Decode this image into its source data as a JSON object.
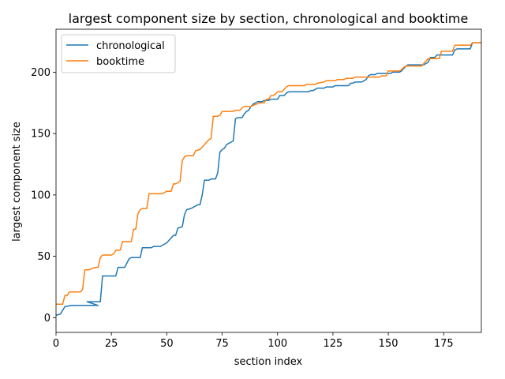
{
  "chart_data": {
    "type": "line",
    "title": "largest component size by section, chronological and booktime",
    "xlabel": "section index",
    "ylabel": "largest component size",
    "xlim": [
      0,
      192
    ],
    "ylim": [
      -12,
      235
    ],
    "xticks": [
      0,
      25,
      50,
      75,
      100,
      125,
      150,
      175
    ],
    "yticks": [
      0,
      50,
      100,
      150,
      200
    ],
    "grid": false,
    "legend_position": "upper-left",
    "series": [
      {
        "name": "chronological",
        "color": "#1f77b4",
        "points": [
          [
            0,
            2
          ],
          [
            2,
            3
          ],
          [
            4,
            9
          ],
          [
            7,
            10
          ],
          [
            19,
            10
          ],
          [
            14,
            13
          ],
          [
            20,
            13
          ],
          [
            21,
            34
          ],
          [
            27,
            34
          ],
          [
            28,
            41
          ],
          [
            31,
            41
          ],
          [
            33,
            48
          ],
          [
            34,
            49
          ],
          [
            38,
            49
          ],
          [
            39,
            57
          ],
          [
            43,
            57
          ],
          [
            44,
            58
          ],
          [
            47,
            58
          ],
          [
            48,
            59
          ],
          [
            50,
            61
          ],
          [
            51,
            63
          ],
          [
            53,
            67
          ],
          [
            54,
            67
          ],
          [
            55,
            73
          ],
          [
            57,
            74
          ],
          [
            58,
            84
          ],
          [
            59,
            88
          ],
          [
            61,
            89
          ],
          [
            62,
            90
          ],
          [
            63,
            91
          ],
          [
            64,
            92
          ],
          [
            65,
            92
          ],
          [
            66,
            100
          ],
          [
            67,
            112
          ],
          [
            69,
            112
          ],
          [
            70,
            113
          ],
          [
            72,
            113
          ],
          [
            73,
            118
          ],
          [
            74,
            135
          ],
          [
            75,
            137
          ],
          [
            76,
            138
          ],
          [
            77,
            141
          ],
          [
            78,
            142
          ],
          [
            79,
            143
          ],
          [
            80,
            144
          ],
          [
            81,
            162
          ],
          [
            82,
            163
          ],
          [
            84,
            163
          ],
          [
            85,
            166
          ],
          [
            86,
            168
          ],
          [
            87,
            169
          ],
          [
            88,
            172
          ],
          [
            89,
            174
          ],
          [
            90,
            175
          ],
          [
            91,
            176
          ],
          [
            93,
            176
          ],
          [
            94,
            177
          ],
          [
            96,
            177
          ],
          [
            97,
            178
          ],
          [
            100,
            178
          ],
          [
            101,
            181
          ],
          [
            103,
            181
          ],
          [
            104,
            183
          ],
          [
            105,
            184
          ],
          [
            114,
            184
          ],
          [
            115,
            185
          ],
          [
            116,
            185
          ],
          [
            117,
            186
          ],
          [
            118,
            187
          ],
          [
            121,
            187
          ],
          [
            122,
            188
          ],
          [
            125,
            188
          ],
          [
            126,
            189
          ],
          [
            132,
            189
          ],
          [
            133,
            191
          ],
          [
            134,
            191
          ],
          [
            135,
            192
          ],
          [
            138,
            192
          ],
          [
            139,
            193
          ],
          [
            140,
            194
          ],
          [
            141,
            197
          ],
          [
            142,
            198
          ],
          [
            144,
            198
          ],
          [
            145,
            199
          ],
          [
            151,
            199
          ],
          [
            152,
            200
          ],
          [
            155,
            200
          ],
          [
            156,
            201
          ],
          [
            157,
            203
          ],
          [
            158,
            205
          ],
          [
            159,
            206
          ],
          [
            166,
            206
          ],
          [
            167,
            207
          ],
          [
            168,
            208
          ],
          [
            169,
            212
          ],
          [
            171,
            212
          ],
          [
            172,
            214
          ],
          [
            179,
            214
          ],
          [
            180,
            218
          ],
          [
            181,
            219
          ],
          [
            187,
            219
          ],
          [
            188,
            224
          ],
          [
            192,
            224
          ]
        ]
      },
      {
        "name": "booktime",
        "color": "#ff7f0e",
        "points": [
          [
            0,
            11
          ],
          [
            3,
            11
          ],
          [
            4,
            18
          ],
          [
            5,
            18
          ],
          [
            6,
            21
          ],
          [
            11,
            21
          ],
          [
            12,
            23
          ],
          [
            13,
            39
          ],
          [
            15,
            39
          ],
          [
            16,
            40
          ],
          [
            18,
            41
          ],
          [
            19,
            41
          ],
          [
            20,
            49
          ],
          [
            21,
            51
          ],
          [
            25,
            51
          ],
          [
            26,
            52
          ],
          [
            27,
            55
          ],
          [
            29,
            55
          ],
          [
            30,
            62
          ],
          [
            34,
            62
          ],
          [
            35,
            72
          ],
          [
            36,
            72
          ],
          [
            37,
            85
          ],
          [
            38,
            88
          ],
          [
            39,
            89
          ],
          [
            41,
            89
          ],
          [
            42,
            101
          ],
          [
            48,
            101
          ],
          [
            49,
            102
          ],
          [
            50,
            103
          ],
          [
            52,
            103
          ],
          [
            53,
            109
          ],
          [
            54,
            109
          ],
          [
            56,
            111
          ],
          [
            57,
            128
          ],
          [
            58,
            131
          ],
          [
            59,
            132
          ],
          [
            62,
            132
          ],
          [
            63,
            136
          ],
          [
            65,
            137
          ],
          [
            66,
            139
          ],
          [
            67,
            141
          ],
          [
            68,
            143
          ],
          [
            69,
            145
          ],
          [
            70,
            146
          ],
          [
            71,
            164
          ],
          [
            73,
            164
          ],
          [
            74,
            165
          ],
          [
            75,
            168
          ],
          [
            80,
            168
          ],
          [
            81,
            169
          ],
          [
            83,
            169
          ],
          [
            84,
            171
          ],
          [
            85,
            172
          ],
          [
            88,
            172
          ],
          [
            89,
            173
          ],
          [
            92,
            175
          ],
          [
            94,
            175
          ],
          [
            95,
            178
          ],
          [
            96,
            178
          ],
          [
            97,
            181
          ],
          [
            98,
            181
          ],
          [
            99,
            182
          ],
          [
            100,
            184
          ],
          [
            102,
            184
          ],
          [
            103,
            186
          ],
          [
            104,
            188
          ],
          [
            105,
            189
          ],
          [
            112,
            189
          ],
          [
            113,
            190
          ],
          [
            117,
            190
          ],
          [
            118,
            191
          ],
          [
            121,
            192
          ],
          [
            122,
            193
          ],
          [
            126,
            193
          ],
          [
            127,
            194
          ],
          [
            130,
            194
          ],
          [
            131,
            195
          ],
          [
            134,
            195
          ],
          [
            135,
            196
          ],
          [
            146,
            196
          ],
          [
            147,
            197
          ],
          [
            149,
            197
          ],
          [
            150,
            201
          ],
          [
            155,
            201
          ],
          [
            156,
            202
          ],
          [
            157,
            204
          ],
          [
            158,
            205
          ],
          [
            165,
            205
          ],
          [
            166,
            207
          ],
          [
            168,
            211
          ],
          [
            173,
            211
          ],
          [
            174,
            217
          ],
          [
            179,
            217
          ],
          [
            180,
            222
          ],
          [
            187,
            222
          ],
          [
            188,
            224
          ],
          [
            192,
            224
          ]
        ]
      }
    ]
  }
}
